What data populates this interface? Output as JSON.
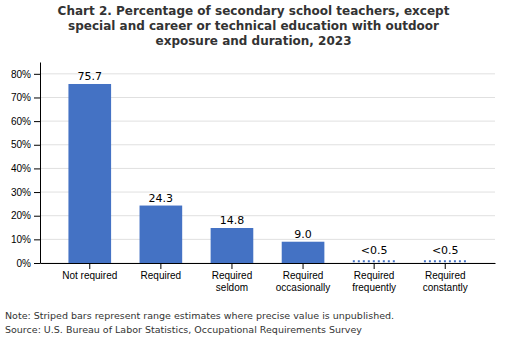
{
  "chart_data": {
    "type": "bar",
    "title": "Chart 2. Percentage of secondary school teachers, except\nspecial and career or technical education with outdoor\nexposure and duration, 2023",
    "categories": [
      "Not required",
      "Required",
      "Required\nseldom",
      "Required\noccasionally",
      "Required\nfrequently",
      "Required\nconstantly"
    ],
    "values": [
      75.7,
      24.3,
      14.8,
      9.0,
      0.3,
      0.3
    ],
    "value_labels": [
      "75.7",
      "24.3",
      "14.8",
      "9.0",
      "<0.5",
      "<0.5"
    ],
    "range_estimate": [
      false,
      false,
      false,
      false,
      true,
      true
    ],
    "data_labels": true,
    "color": "#4472C4",
    "ylim": [
      0,
      85
    ],
    "yticks": [
      {
        "value": 0,
        "label": "0%"
      },
      {
        "value": 10,
        "label": "10%"
      },
      {
        "value": 20,
        "label": "20%"
      },
      {
        "value": 30,
        "label": "30%"
      },
      {
        "value": 40,
        "label": "40%"
      },
      {
        "value": 50,
        "label": "50%"
      },
      {
        "value": 60,
        "label": "60%"
      },
      {
        "value": 70,
        "label": "70%"
      },
      {
        "value": 80,
        "label": "80%"
      }
    ],
    "grid": true,
    "notes": [
      "Note: Striped bars represent range estimates where precise value is unpublished.",
      "Source: U.S. Bureau of Labor Statistics, Occupational Requirements Survey"
    ]
  }
}
